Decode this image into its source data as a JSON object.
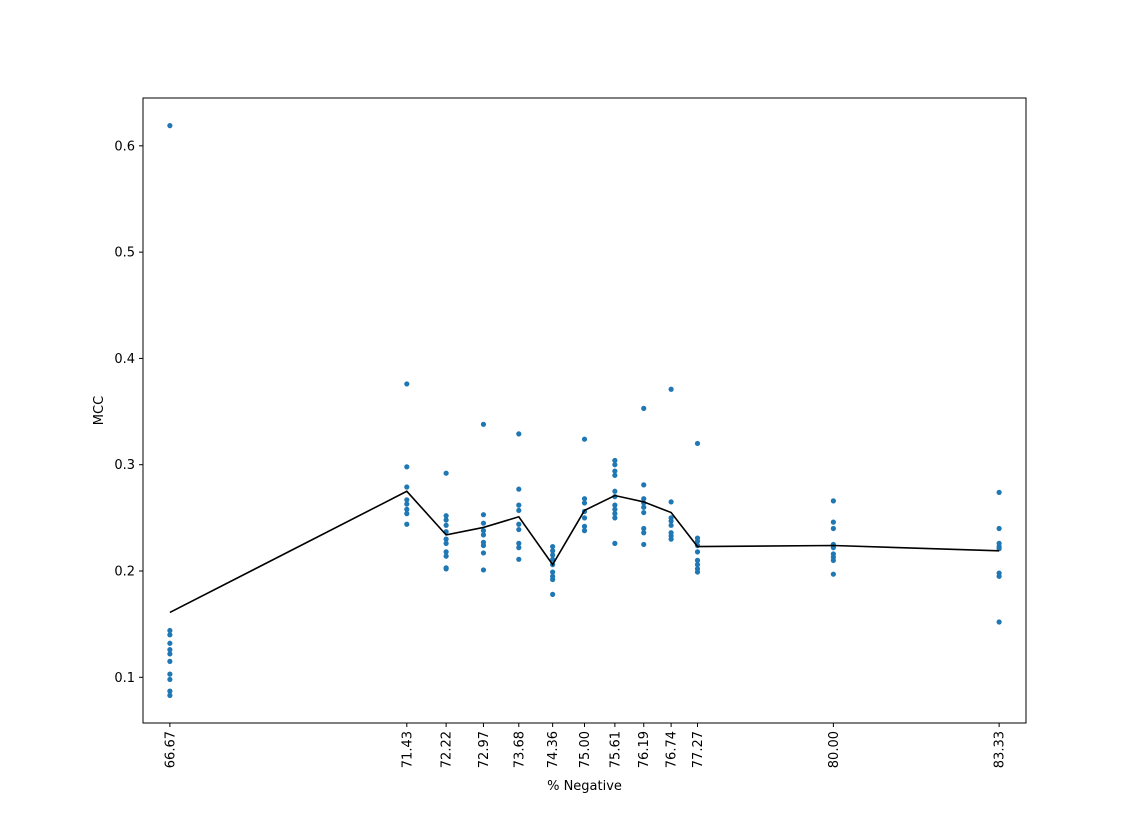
{
  "chart_data": {
    "type": "scatter",
    "title": "",
    "xlabel": "% Negative",
    "ylabel": "MCC",
    "xlim": [
      66.13,
      83.87
    ],
    "ylim": [
      0.057,
      0.645
    ],
    "grid": false,
    "legend": "none",
    "x_ticks": [
      "66.67",
      "71.43",
      "72.22",
      "72.97",
      "73.68",
      "74.36",
      "75.00",
      "75.61",
      "76.19",
      "76.74",
      "77.27",
      "80.00",
      "83.33"
    ],
    "y_ticks": [
      "0.1",
      "0.2",
      "0.3",
      "0.4",
      "0.5",
      "0.6"
    ],
    "series": [
      {
        "kind": "points",
        "color": "#1f77b4",
        "points": [
          {
            "x": 66.67,
            "y": 0.619
          },
          {
            "x": 66.67,
            "y": 0.144
          },
          {
            "x": 66.67,
            "y": 0.14
          },
          {
            "x": 66.67,
            "y": 0.132
          },
          {
            "x": 66.67,
            "y": 0.126
          },
          {
            "x": 66.67,
            "y": 0.122
          },
          {
            "x": 66.67,
            "y": 0.115
          },
          {
            "x": 66.67,
            "y": 0.103
          },
          {
            "x": 66.67,
            "y": 0.098
          },
          {
            "x": 66.67,
            "y": 0.087
          },
          {
            "x": 66.67,
            "y": 0.083
          },
          {
            "x": 71.43,
            "y": 0.376
          },
          {
            "x": 71.43,
            "y": 0.298
          },
          {
            "x": 71.43,
            "y": 0.279
          },
          {
            "x": 71.43,
            "y": 0.267
          },
          {
            "x": 71.43,
            "y": 0.263
          },
          {
            "x": 71.43,
            "y": 0.258
          },
          {
            "x": 71.43,
            "y": 0.254
          },
          {
            "x": 71.43,
            "y": 0.244
          },
          {
            "x": 72.22,
            "y": 0.292
          },
          {
            "x": 72.22,
            "y": 0.252
          },
          {
            "x": 72.22,
            "y": 0.248
          },
          {
            "x": 72.22,
            "y": 0.243
          },
          {
            "x": 72.22,
            "y": 0.237
          },
          {
            "x": 72.22,
            "y": 0.23
          },
          {
            "x": 72.22,
            "y": 0.226
          },
          {
            "x": 72.22,
            "y": 0.218
          },
          {
            "x": 72.22,
            "y": 0.214
          },
          {
            "x": 72.22,
            "y": 0.203
          },
          {
            "x": 72.22,
            "y": 0.202
          },
          {
            "x": 72.97,
            "y": 0.338
          },
          {
            "x": 72.97,
            "y": 0.253
          },
          {
            "x": 72.97,
            "y": 0.245
          },
          {
            "x": 72.97,
            "y": 0.238
          },
          {
            "x": 72.97,
            "y": 0.234
          },
          {
            "x": 72.97,
            "y": 0.227
          },
          {
            "x": 72.97,
            "y": 0.224
          },
          {
            "x": 72.97,
            "y": 0.217
          },
          {
            "x": 72.97,
            "y": 0.201
          },
          {
            "x": 73.68,
            "y": 0.329
          },
          {
            "x": 73.68,
            "y": 0.277
          },
          {
            "x": 73.68,
            "y": 0.262
          },
          {
            "x": 73.68,
            "y": 0.257
          },
          {
            "x": 73.68,
            "y": 0.244
          },
          {
            "x": 73.68,
            "y": 0.239
          },
          {
            "x": 73.68,
            "y": 0.226
          },
          {
            "x": 73.68,
            "y": 0.222
          },
          {
            "x": 73.68,
            "y": 0.211
          },
          {
            "x": 74.36,
            "y": 0.223
          },
          {
            "x": 74.36,
            "y": 0.219
          },
          {
            "x": 74.36,
            "y": 0.215
          },
          {
            "x": 74.36,
            "y": 0.211
          },
          {
            "x": 74.36,
            "y": 0.206
          },
          {
            "x": 74.36,
            "y": 0.199
          },
          {
            "x": 74.36,
            "y": 0.195
          },
          {
            "x": 74.36,
            "y": 0.192
          },
          {
            "x": 74.36,
            "y": 0.178
          },
          {
            "x": 75.0,
            "y": 0.324
          },
          {
            "x": 75.0,
            "y": 0.268
          },
          {
            "x": 75.0,
            "y": 0.264
          },
          {
            "x": 75.0,
            "y": 0.256
          },
          {
            "x": 75.0,
            "y": 0.25
          },
          {
            "x": 75.0,
            "y": 0.242
          },
          {
            "x": 75.0,
            "y": 0.238
          },
          {
            "x": 75.61,
            "y": 0.304
          },
          {
            "x": 75.61,
            "y": 0.3
          },
          {
            "x": 75.61,
            "y": 0.294
          },
          {
            "x": 75.61,
            "y": 0.29
          },
          {
            "x": 75.61,
            "y": 0.275
          },
          {
            "x": 75.61,
            "y": 0.27
          },
          {
            "x": 75.61,
            "y": 0.262
          },
          {
            "x": 75.61,
            "y": 0.258
          },
          {
            "x": 75.61,
            "y": 0.254
          },
          {
            "x": 75.61,
            "y": 0.25
          },
          {
            "x": 75.61,
            "y": 0.226
          },
          {
            "x": 76.19,
            "y": 0.353
          },
          {
            "x": 76.19,
            "y": 0.281
          },
          {
            "x": 76.19,
            "y": 0.268
          },
          {
            "x": 76.19,
            "y": 0.264
          },
          {
            "x": 76.19,
            "y": 0.26
          },
          {
            "x": 76.19,
            "y": 0.255
          },
          {
            "x": 76.19,
            "y": 0.24
          },
          {
            "x": 76.19,
            "y": 0.236
          },
          {
            "x": 76.19,
            "y": 0.225
          },
          {
            "x": 76.74,
            "y": 0.371
          },
          {
            "x": 76.74,
            "y": 0.265
          },
          {
            "x": 76.74,
            "y": 0.25
          },
          {
            "x": 76.74,
            "y": 0.247
          },
          {
            "x": 76.74,
            "y": 0.243
          },
          {
            "x": 76.74,
            "y": 0.236
          },
          {
            "x": 76.74,
            "y": 0.233
          },
          {
            "x": 76.74,
            "y": 0.23
          },
          {
            "x": 77.27,
            "y": 0.32
          },
          {
            "x": 77.27,
            "y": 0.231
          },
          {
            "x": 77.27,
            "y": 0.228
          },
          {
            "x": 77.27,
            "y": 0.224
          },
          {
            "x": 77.27,
            "y": 0.218
          },
          {
            "x": 77.27,
            "y": 0.21
          },
          {
            "x": 77.27,
            "y": 0.206
          },
          {
            "x": 77.27,
            "y": 0.202
          },
          {
            "x": 77.27,
            "y": 0.199
          },
          {
            "x": 80.0,
            "y": 0.266
          },
          {
            "x": 80.0,
            "y": 0.246
          },
          {
            "x": 80.0,
            "y": 0.24
          },
          {
            "x": 80.0,
            "y": 0.225
          },
          {
            "x": 80.0,
            "y": 0.222
          },
          {
            "x": 80.0,
            "y": 0.216
          },
          {
            "x": 80.0,
            "y": 0.213
          },
          {
            "x": 80.0,
            "y": 0.21
          },
          {
            "x": 80.0,
            "y": 0.197
          },
          {
            "x": 83.33,
            "y": 0.274
          },
          {
            "x": 83.33,
            "y": 0.24
          },
          {
            "x": 83.33,
            "y": 0.226
          },
          {
            "x": 83.33,
            "y": 0.223
          },
          {
            "x": 83.33,
            "y": 0.221
          },
          {
            "x": 83.33,
            "y": 0.198
          },
          {
            "x": 83.33,
            "y": 0.195
          },
          {
            "x": 83.33,
            "y": 0.152
          }
        ]
      },
      {
        "kind": "line",
        "color": "#000000",
        "x": [
          66.67,
          71.43,
          72.22,
          72.97,
          73.68,
          74.36,
          75.0,
          75.61,
          76.19,
          76.74,
          77.27,
          80.0,
          83.33
        ],
        "y": [
          0.161,
          0.275,
          0.234,
          0.241,
          0.251,
          0.206,
          0.257,
          0.271,
          0.265,
          0.255,
          0.223,
          0.224,
          0.219
        ]
      }
    ]
  }
}
